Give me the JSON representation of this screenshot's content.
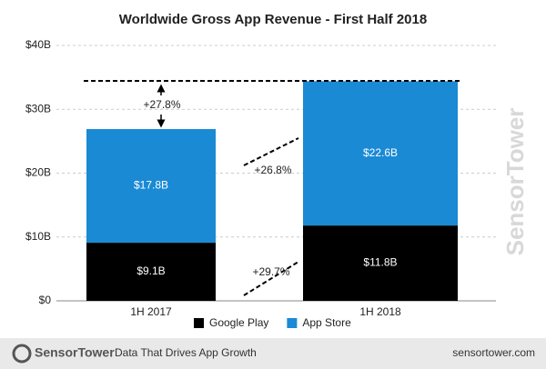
{
  "chart_data": {
    "type": "stacked-bar",
    "title": "Worldwide Gross App Revenue - First Half 2018",
    "categories": [
      "1H 2017",
      "1H 2018"
    ],
    "series": [
      {
        "name": "Google Play",
        "color": "#000000",
        "values": [
          9.1,
          11.8
        ],
        "value_labels": [
          "$9.1B",
          "$11.8B"
        ]
      },
      {
        "name": "App Store",
        "color": "#1a8ad4",
        "values": [
          17.8,
          22.6
        ],
        "value_labels": [
          "$17.8B",
          "$22.6B"
        ]
      }
    ],
    "ylim": [
      0,
      40
    ],
    "yticks": [
      {
        "value": 0,
        "label": "$0"
      },
      {
        "value": 10,
        "label": "$10B"
      },
      {
        "value": 20,
        "label": "$20B"
      },
      {
        "value": 30,
        "label": "$30B"
      },
      {
        "value": 40,
        "label": "$40B"
      }
    ],
    "grid": true,
    "annotations": [
      "+27.8%",
      "+26.8%",
      "+29.7%"
    ],
    "watermark": "SensorTower",
    "footer": {
      "brand": "SensorTower",
      "tagline": "Data That Drives App Growth",
      "url": "sensortower.com"
    }
  }
}
